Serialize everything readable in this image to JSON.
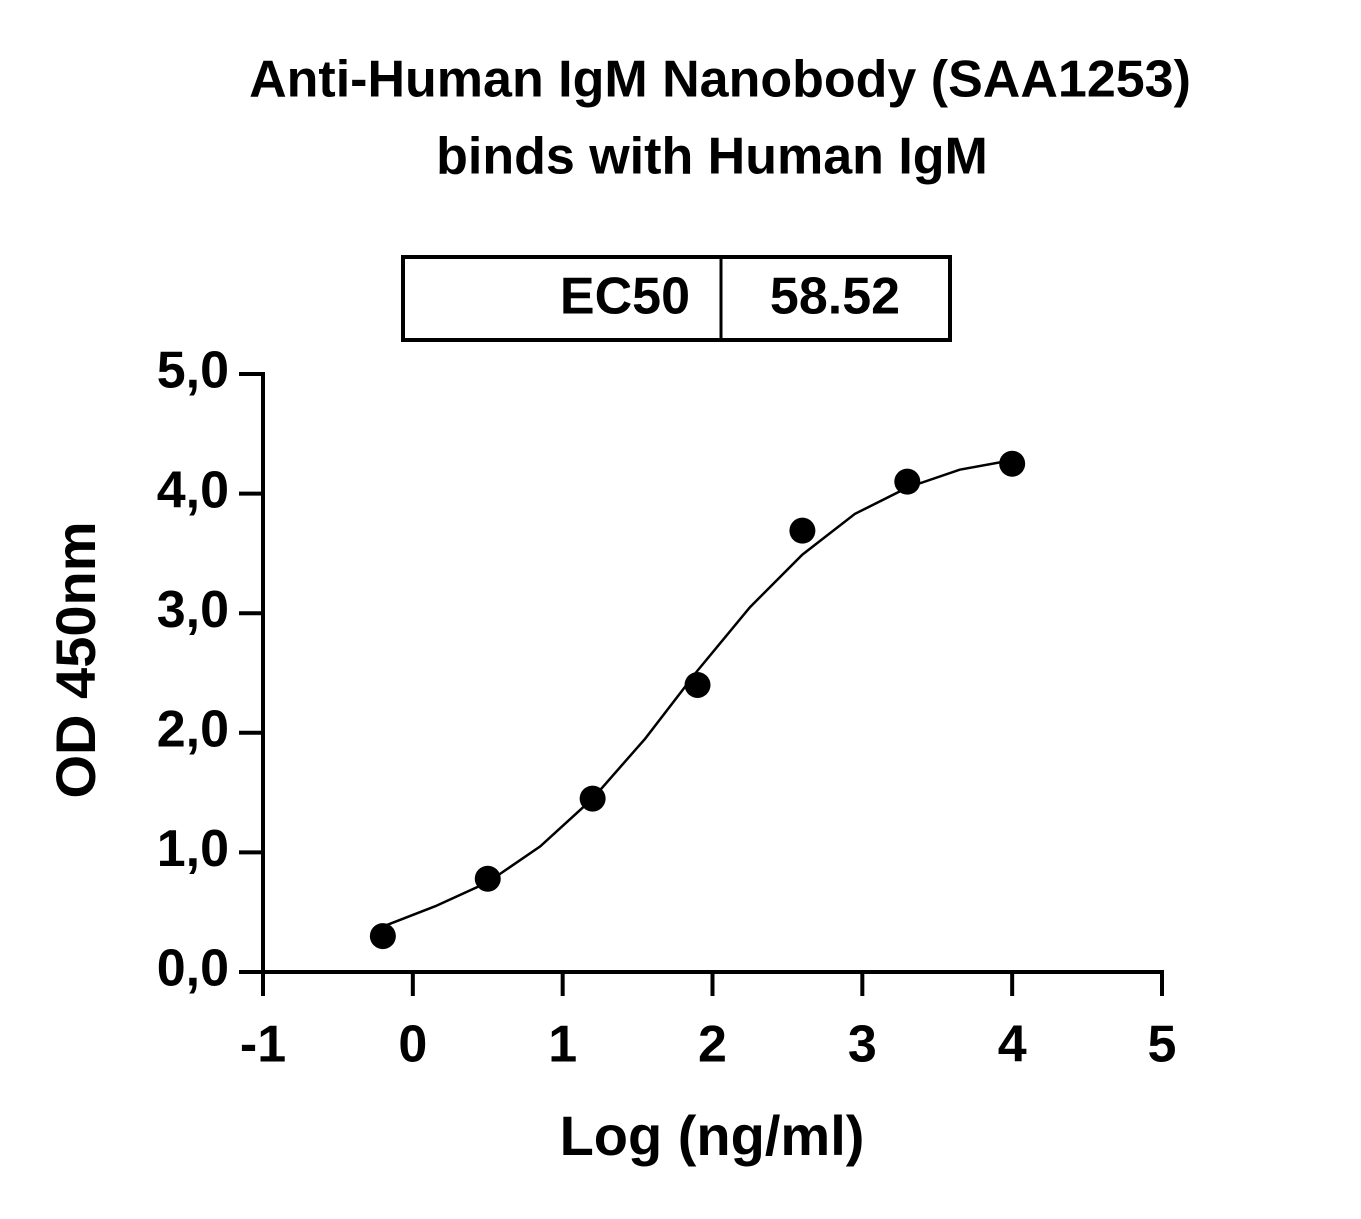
{
  "chart_data": {
    "type": "scatter",
    "title": [
      "Anti-Human IgM Nanobody (SAA1253)",
      "binds with Human IgM"
    ],
    "x_label": "Log (ng/ml)",
    "y_label": "OD 450nm",
    "ec50_table": {
      "label": "EC50",
      "value": 58.52
    },
    "series": [
      {
        "color": "#000000",
        "x": [
          -0.2,
          0.5,
          1.2,
          1.9,
          2.6,
          3.3,
          4.0
        ],
        "values": [
          0.3,
          0.78,
          1.45,
          2.4,
          3.69,
          4.1,
          4.25
        ]
      }
    ],
    "curve": {
      "color": "#000000",
      "x": [
        -0.2,
        0.15,
        0.5,
        0.85,
        1.2,
        1.55,
        1.9,
        2.25,
        2.6,
        2.95,
        3.3,
        3.65,
        4.0
      ],
      "values": [
        0.38,
        0.55,
        0.75,
        1.05,
        1.45,
        1.95,
        2.52,
        3.05,
        3.49,
        3.83,
        4.05,
        4.2,
        4.28
      ]
    },
    "xlim": [
      -1,
      5
    ],
    "xticks": [
      -1,
      0,
      1,
      2,
      3,
      4,
      5
    ],
    "ylim": [
      0,
      5
    ],
    "yticks": [
      {
        "value": 0,
        "label": "0,0"
      },
      {
        "value": 1,
        "label": "1,0"
      },
      {
        "value": 2,
        "label": "2,0"
      },
      {
        "value": 3,
        "label": "3,0"
      },
      {
        "value": 4,
        "label": "4,0"
      },
      {
        "value": 5,
        "label": "5,0"
      }
    ]
  }
}
